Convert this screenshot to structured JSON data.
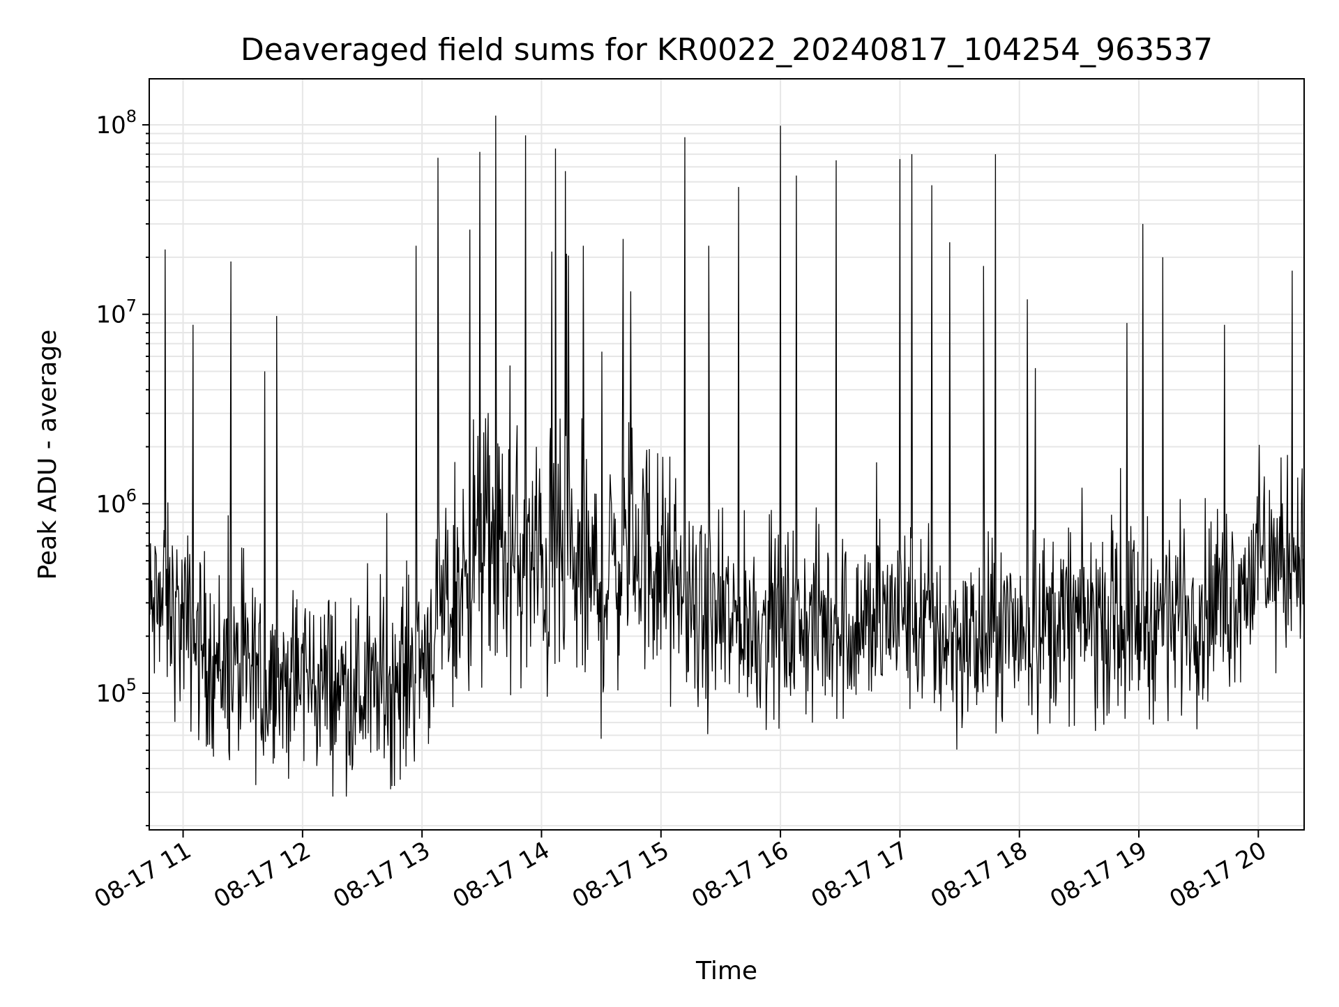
{
  "chart_data": {
    "type": "line",
    "title": "Deaveraged field sums for KR0022_20240817_104254_963537",
    "xlabel": "Time",
    "ylabel": "Peak ADU - average",
    "yscale": "log",
    "ylim": [
      19000,
      175000000
    ],
    "xlim": [
      "2024-08-17 10:43",
      "2024-08-17 20:23"
    ],
    "x_ticks": [
      {
        "label": "08-17 11",
        "time": "2024-08-17 11:00"
      },
      {
        "label": "08-17 12",
        "time": "2024-08-17 12:00"
      },
      {
        "label": "08-17 13",
        "time": "2024-08-17 13:00"
      },
      {
        "label": "08-17 14",
        "time": "2024-08-17 14:00"
      },
      {
        "label": "08-17 15",
        "time": "2024-08-17 15:00"
      },
      {
        "label": "08-17 16",
        "time": "2024-08-17 16:00"
      },
      {
        "label": "08-17 17",
        "time": "2024-08-17 17:00"
      },
      {
        "label": "08-17 18",
        "time": "2024-08-17 18:00"
      },
      {
        "label": "08-17 19",
        "time": "2024-08-17 19:00"
      },
      {
        "label": "08-17 20",
        "time": "2024-08-17 20:00"
      }
    ],
    "y_ticks": [
      {
        "base": "10",
        "exp": "5",
        "value": 100000
      },
      {
        "base": "10",
        "exp": "6",
        "value": 1000000
      },
      {
        "base": "10",
        "exp": "7",
        "value": 10000000
      },
      {
        "base": "10",
        "exp": "8",
        "value": 100000000
      }
    ],
    "grid": true,
    "line_color": "#000000",
    "grid_color": "#e6e6e6",
    "series": [
      {
        "x": [
          "2024-08-17 10:43",
          "2024-08-17 10:50",
          "2024-08-17 11:00",
          "2024-08-17 11:15",
          "2024-08-17 11:30",
          "2024-08-17 11:45",
          "2024-08-17 12:00",
          "2024-08-17 12:15",
          "2024-08-17 12:30",
          "2024-08-17 12:45",
          "2024-08-17 13:00",
          "2024-08-17 13:15",
          "2024-08-17 13:30",
          "2024-08-17 13:45",
          "2024-08-17 14:00",
          "2024-08-17 14:15",
          "2024-08-17 14:30",
          "2024-08-17 14:45",
          "2024-08-17 15:00",
          "2024-08-17 15:15",
          "2024-08-17 15:30",
          "2024-08-17 15:45",
          "2024-08-17 16:00",
          "2024-08-17 16:15",
          "2024-08-17 16:30",
          "2024-08-17 16:45",
          "2024-08-17 17:00",
          "2024-08-17 17:15",
          "2024-08-17 17:30",
          "2024-08-17 17:45",
          "2024-08-17 18:00",
          "2024-08-17 18:15",
          "2024-08-17 18:30",
          "2024-08-17 18:45",
          "2024-08-17 19:00",
          "2024-08-17 19:15",
          "2024-08-17 19:30",
          "2024-08-17 19:45",
          "2024-08-17 20:00",
          "2024-08-17 20:15",
          "2024-08-17 20:23"
        ],
        "y": [
          250000,
          300000,
          230000,
          150000,
          120000,
          110000,
          120000,
          110000,
          100000,
          110000,
          160000,
          300000,
          600000,
          500000,
          450000,
          450000,
          350000,
          650000,
          450000,
          250000,
          230000,
          230000,
          230000,
          230000,
          230000,
          230000,
          270000,
          220000,
          190000,
          180000,
          230000,
          230000,
          250000,
          240000,
          240000,
          270000,
          280000,
          330000,
          480000,
          500000,
          600000
        ]
      }
    ],
    "spikes": [
      {
        "time": "2024-08-17 10:51",
        "value": 22000000
      },
      {
        "time": "2024-08-17 11:05",
        "value": 8800000
      },
      {
        "time": "2024-08-17 11:24",
        "value": 19000000
      },
      {
        "time": "2024-08-17 11:41",
        "value": 5000000
      },
      {
        "time": "2024-08-17 11:47",
        "value": 9800000
      },
      {
        "time": "2024-08-17 12:57",
        "value": 23000000
      },
      {
        "time": "2024-08-17 13:08",
        "value": 67000000
      },
      {
        "time": "2024-08-17 13:24",
        "value": 28000000
      },
      {
        "time": "2024-08-17 13:29",
        "value": 72000000
      },
      {
        "time": "2024-08-17 13:37",
        "value": 112000000
      },
      {
        "time": "2024-08-17 13:52",
        "value": 88000000
      },
      {
        "time": "2024-08-17 14:07",
        "value": 75000000
      },
      {
        "time": "2024-08-17 14:12",
        "value": 57000000
      },
      {
        "time": "2024-08-17 14:21",
        "value": 23000000
      },
      {
        "time": "2024-08-17 14:41",
        "value": 25000000
      },
      {
        "time": "2024-08-17 15:12",
        "value": 86000000
      },
      {
        "time": "2024-08-17 15:24",
        "value": 23000000
      },
      {
        "time": "2024-08-17 15:39",
        "value": 47000000
      },
      {
        "time": "2024-08-17 16:00",
        "value": 99000000
      },
      {
        "time": "2024-08-17 16:08",
        "value": 54000000
      },
      {
        "time": "2024-08-17 16:28",
        "value": 65000000
      },
      {
        "time": "2024-08-17 17:00",
        "value": 66000000
      },
      {
        "time": "2024-08-17 17:06",
        "value": 70000000
      },
      {
        "time": "2024-08-17 17:16",
        "value": 48000000
      },
      {
        "time": "2024-08-17 17:25",
        "value": 24000000
      },
      {
        "time": "2024-08-17 17:42",
        "value": 18000000
      },
      {
        "time": "2024-08-17 17:48",
        "value": 70000000
      },
      {
        "time": "2024-08-17 18:04",
        "value": 12000000
      },
      {
        "time": "2024-08-17 18:08",
        "value": 5200000
      },
      {
        "time": "2024-08-17 18:54",
        "value": 9000000
      },
      {
        "time": "2024-08-17 19:02",
        "value": 30000000
      },
      {
        "time": "2024-08-17 19:12",
        "value": 20000000
      },
      {
        "time": "2024-08-17 19:43",
        "value": 8800000
      },
      {
        "time": "2024-08-17 20:17",
        "value": 17000000
      }
    ]
  }
}
